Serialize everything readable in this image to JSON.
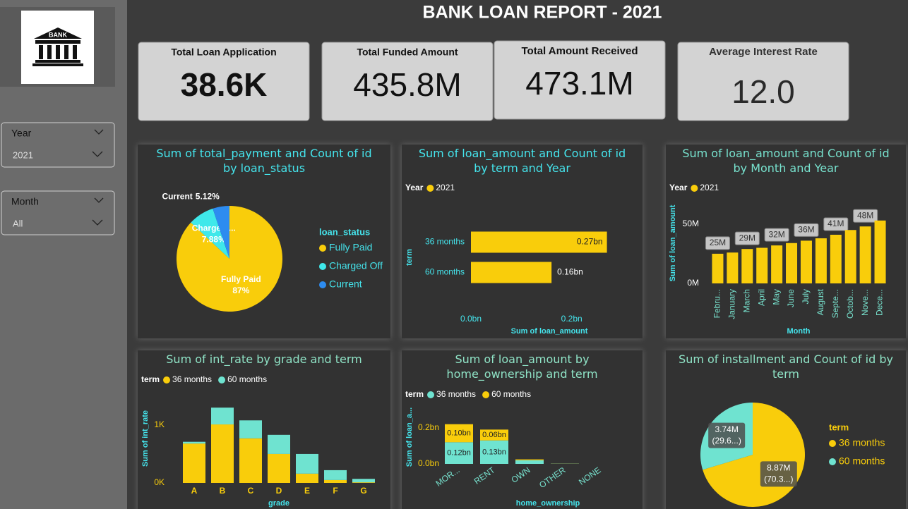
{
  "header": {
    "title": "BANK LOAN REPORT - 2021",
    "logo_text": "BANK"
  },
  "kpis": [
    {
      "label": "Total Loan Application",
      "value": "38.6K"
    },
    {
      "label": "Total Funded Amount",
      "value": "435.8M"
    },
    {
      "label": "Total Amount Received",
      "value": "473.1M"
    },
    {
      "label": "Average Interest Rate",
      "value": "12.0"
    }
  ],
  "slicers": [
    {
      "label": "Year",
      "selected": "2021"
    },
    {
      "label": "Month",
      "selected": "All"
    }
  ],
  "chart_data": [
    {
      "type": "pie",
      "title": "Sum of total_payment and Count of id by loan_status",
      "legend_title": "loan_status",
      "categories": [
        "Fully Paid",
        "Charged Off",
        "Current"
      ],
      "slice_labels": [
        "Fully Paid",
        "Charged ...",
        "Current"
      ],
      "values": [
        87,
        7.88,
        5.12
      ],
      "value_labels": [
        "87%",
        "7.88%",
        "5.12%"
      ],
      "colors": [
        "#F9CD0B",
        "#3FE8EA",
        "#2D8CF0"
      ]
    },
    {
      "type": "bar",
      "orientation": "horizontal",
      "title": "Sum of loan_amount and Count of id by term and Year",
      "legend_title": "Year",
      "categories": [
        "36 months",
        "60 months"
      ],
      "series": [
        {
          "name": "2021",
          "color": "#F9CD0B",
          "values": [
            0.27,
            0.16
          ],
          "value_labels": [
            "0.27bn",
            "0.16bn"
          ]
        }
      ],
      "xlim": [
        0,
        0.3
      ],
      "xticks": [
        {
          "value": 0,
          "label": "0.0bn"
        },
        {
          "value": 0.2,
          "label": "0.2bn"
        }
      ],
      "x_label": "Sum of loan_amount",
      "y_label": "term"
    },
    {
      "type": "bar",
      "title": "Sum of loan_amount and Count of id by Month and Year",
      "legend_title": "Year",
      "categories": [
        "Febru...",
        "January",
        "March",
        "April",
        "May",
        "June",
        "July",
        "August",
        "Septe...",
        "Octob...",
        "Nove...",
        "Dece..."
      ],
      "series": [
        {
          "name": "2021",
          "color": "#F9CD0B",
          "values": [
            25,
            26,
            29,
            30,
            32,
            34,
            36,
            38,
            41,
            45,
            48,
            53
          ],
          "value_labels": [
            "25M",
            null,
            "29M",
            null,
            "32M",
            null,
            "36M",
            null,
            "41M",
            null,
            "48M",
            null
          ]
        }
      ],
      "ylim": [
        0,
        60
      ],
      "yticks": [
        {
          "value": 0,
          "label": "0M"
        },
        {
          "value": 50,
          "label": "50M"
        }
      ],
      "x_label": "Month",
      "y_label": "Sum of loan_amount"
    },
    {
      "type": "bar",
      "stacked": true,
      "title": "Sum of int_rate by grade and term",
      "legend_title": "term",
      "categories": [
        "A",
        "B",
        "C",
        "D",
        "E",
        "F",
        "G"
      ],
      "series": [
        {
          "name": "36 months",
          "color": "#F9CD0B",
          "values": [
            0.68,
            1.01,
            0.77,
            0.5,
            0.16,
            0.05,
            0.01
          ]
        },
        {
          "name": "60 months",
          "color": "#6FE3D0",
          "values": [
            0.03,
            0.29,
            0.31,
            0.33,
            0.34,
            0.17,
            0.06
          ]
        }
      ],
      "ylim": [
        0,
        1.4
      ],
      "yticks": [
        {
          "value": 0,
          "label": "0K"
        },
        {
          "value": 1,
          "label": "1K"
        }
      ],
      "x_label": "grade",
      "y_label": "Sum of int_rate"
    },
    {
      "type": "bar",
      "stacked": true,
      "title": "Sum of loan_amount by home_ownership and term",
      "legend_title": "term",
      "categories": [
        "MOR...",
        "RENT",
        "OWN",
        "OTHER",
        "NONE"
      ],
      "series": [
        {
          "name": "36 months",
          "color": "#6FE3D0",
          "values": [
            0.12,
            0.13,
            0.02,
            0.001,
            0
          ],
          "value_labels": [
            "0.12bn",
            "0.13bn",
            null,
            null,
            null
          ]
        },
        {
          "name": "60 months",
          "color": "#F9CD0B",
          "values": [
            0.1,
            0.06,
            0.005,
            0.0005,
            0
          ],
          "value_labels": [
            "0.10bn",
            "0.06bn",
            null,
            null,
            null
          ]
        }
      ],
      "ylim": [
        0,
        0.25
      ],
      "yticks": [
        {
          "value": 0,
          "label": "0.0bn"
        },
        {
          "value": 0.2,
          "label": "0.2bn"
        }
      ],
      "x_label": "home_ownership",
      "y_label": "Sum of loan_a..."
    },
    {
      "type": "pie",
      "title": "Sum of installment and Count of id by term",
      "legend_title": "term",
      "categories": [
        "36 months",
        "60 months"
      ],
      "values": [
        8.87,
        3.74
      ],
      "value_labels": [
        "8.87M",
        "3.74M"
      ],
      "detail_labels": [
        "(70.3...)",
        "(29.6...)"
      ],
      "colors": [
        "#F9CD0B",
        "#6FE3D0"
      ]
    }
  ]
}
